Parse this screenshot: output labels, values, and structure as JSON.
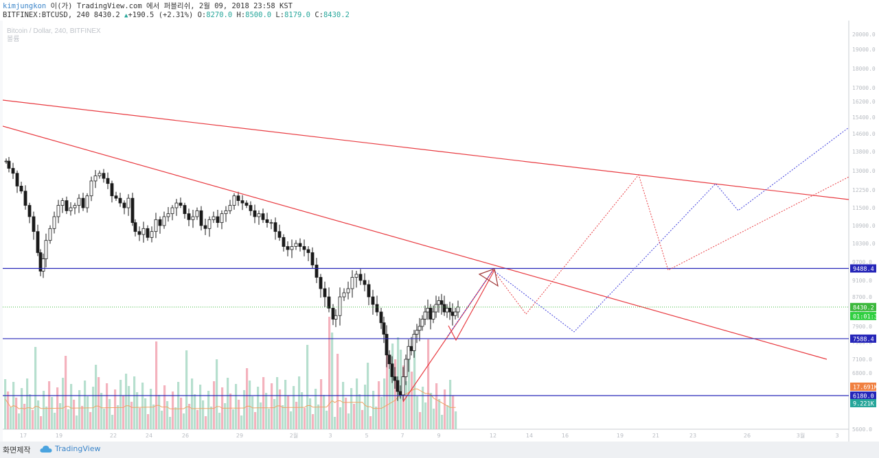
{
  "header": {
    "user": "kimjungkon",
    "publish_text": " 이(가) TradingView.com 에서 퍼블리쉬, 2월 09, 2018 23:58 KST",
    "symbol_prefix": "BITFINEX:BTCUSD, 240 8430.2 ",
    "arrow": "▲",
    "change": "+190.5 (+2.31%) ",
    "o_label": "O:",
    "o_value": "8270.0",
    "h_label": " H:",
    "h_value": "8500.0",
    "l_label": " L:",
    "l_value": "8179.0",
    "c_label": " C:",
    "c_value": "8430.2"
  },
  "footer": {
    "made_with": "화면제작",
    "brand": "TradingView",
    "brand_icon": "tradingview-cloud-icon"
  },
  "colors": {
    "up": "#26a69a",
    "down": "#1a1a1a",
    "trendline": "#e8393f",
    "support": "#2525b8",
    "price_line": "#3cb83c",
    "vol_up": "#a9d9c5",
    "vol_down": "#f2a5b2",
    "vol_ma": "#f0a060",
    "projection_blue": "#3b3bdc",
    "projection_red": "#e8393f"
  },
  "chart_data": {
    "type": "candlestick",
    "watermark": "Bitcoin / Dollar, 240, BITFINEX",
    "volume_label": "볼륨",
    "y_ticks": [
      20000,
      19000,
      18000,
      17000,
      16200,
      15400,
      14600,
      13800,
      13000,
      12250,
      11500,
      10900,
      10300,
      9700,
      9100,
      8700,
      8300,
      7900,
      7500,
      7100,
      6800,
      6400,
      6000,
      5600
    ],
    "x_ticks": [
      "17",
      "19",
      "22",
      "24",
      "26",
      "29",
      "2월",
      "3",
      "5",
      "7",
      "9",
      "12",
      "14",
      "16",
      "19",
      "21",
      "23",
      "26",
      "3월",
      "3"
    ],
    "price_labels": [
      {
        "text": "9488.4",
        "value": 9488.4,
        "kind": "support"
      },
      {
        "text": "8430.2",
        "value": 8430.2,
        "kind": "last"
      },
      {
        "text": "01:01:38",
        "value": 8430.2,
        "kind": "timer"
      },
      {
        "text": "7588.4",
        "value": 7588.4,
        "kind": "support"
      },
      {
        "text": "17.691K",
        "value": 17691,
        "kind": "volume_ma"
      },
      {
        "text": "6180.0",
        "value": 6180,
        "kind": "support"
      },
      {
        "text": "9.221K",
        "value": 9221,
        "kind": "volume"
      }
    ],
    "support_levels": [
      9488.4,
      7588.4,
      6180.0
    ],
    "last_price": 8430.2
  }
}
